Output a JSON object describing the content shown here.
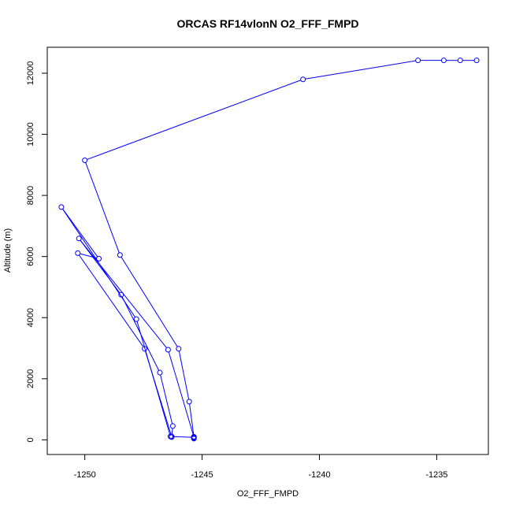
{
  "chart_data": {
    "type": "line",
    "title": "ORCAS RF14vlonN O2_FFF_FMPD",
    "xlabel": "O2_FFF_FMPD",
    "ylabel": "Altitude (m)",
    "xlim": [
      -1251.6,
      -1232.8
    ],
    "ylim": [
      -480,
      12850
    ],
    "xticks": [
      -1250,
      -1245,
      -1240,
      -1235
    ],
    "yticks": [
      0,
      2000,
      4000,
      6000,
      8000,
      10000,
      12000
    ],
    "grid": false,
    "marker": "open-circle",
    "color": "#0000ff",
    "series": [
      {
        "x": [
          -1233.3,
          -1234.0,
          -1234.7,
          -1235.8,
          -1240.7,
          -1250.0,
          -1248.5,
          -1246.0,
          -1245.55,
          -1245.35,
          -1245.35,
          -1245.35,
          -1246.35,
          -1247.8,
          -1251.0,
          -1249.4,
          -1250.3,
          -1247.45,
          -1246.3,
          -1246.3,
          -1246.25,
          -1246.8,
          -1248.45,
          -1250.25,
          -1246.45,
          -1245.35,
          -1245.35
        ],
        "y": [
          12420,
          12420,
          12420,
          12420,
          11800,
          9150,
          6050,
          2980,
          1250,
          100,
          40,
          80,
          110,
          3950,
          7620,
          5930,
          6110,
          2980,
          110,
          90,
          450,
          2200,
          4750,
          6590,
          2950,
          90,
          60
        ]
      }
    ]
  }
}
